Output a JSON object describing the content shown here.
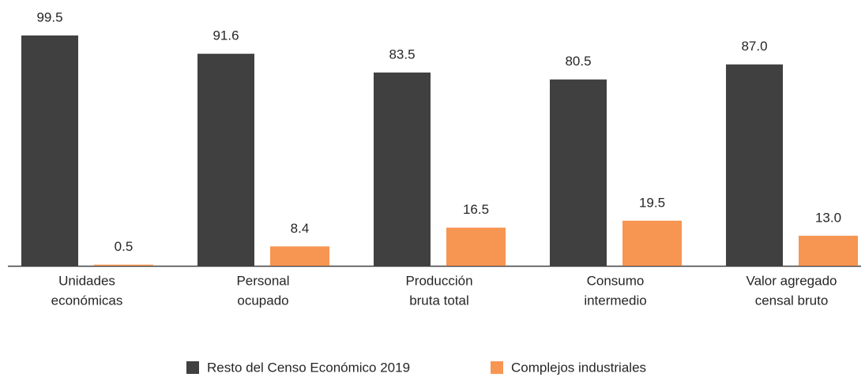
{
  "chart_data": {
    "type": "bar",
    "categories": [
      [
        "Unidades",
        "económicas"
      ],
      [
        "Personal",
        "ocupado"
      ],
      [
        "Producción",
        "bruta total"
      ],
      [
        "Consumo",
        "intermedio"
      ],
      [
        "Valor agregado",
        "censal bruto"
      ]
    ],
    "series": [
      {
        "name": "Resto del Censo Económico 2019",
        "color": "#404040",
        "values": [
          99.5,
          91.6,
          83.5,
          80.5,
          87.0
        ],
        "value_labels": [
          "99.5",
          "91.6",
          "83.5",
          "80.5",
          "87.0"
        ]
      },
      {
        "name": "Complejos industriales",
        "color": "#f79552",
        "values": [
          0.5,
          8.4,
          16.5,
          19.5,
          13.0
        ],
        "value_labels": [
          "0.5",
          "8.4",
          "16.5",
          "19.5",
          "13.0"
        ]
      }
    ],
    "legend": "bottom"
  }
}
